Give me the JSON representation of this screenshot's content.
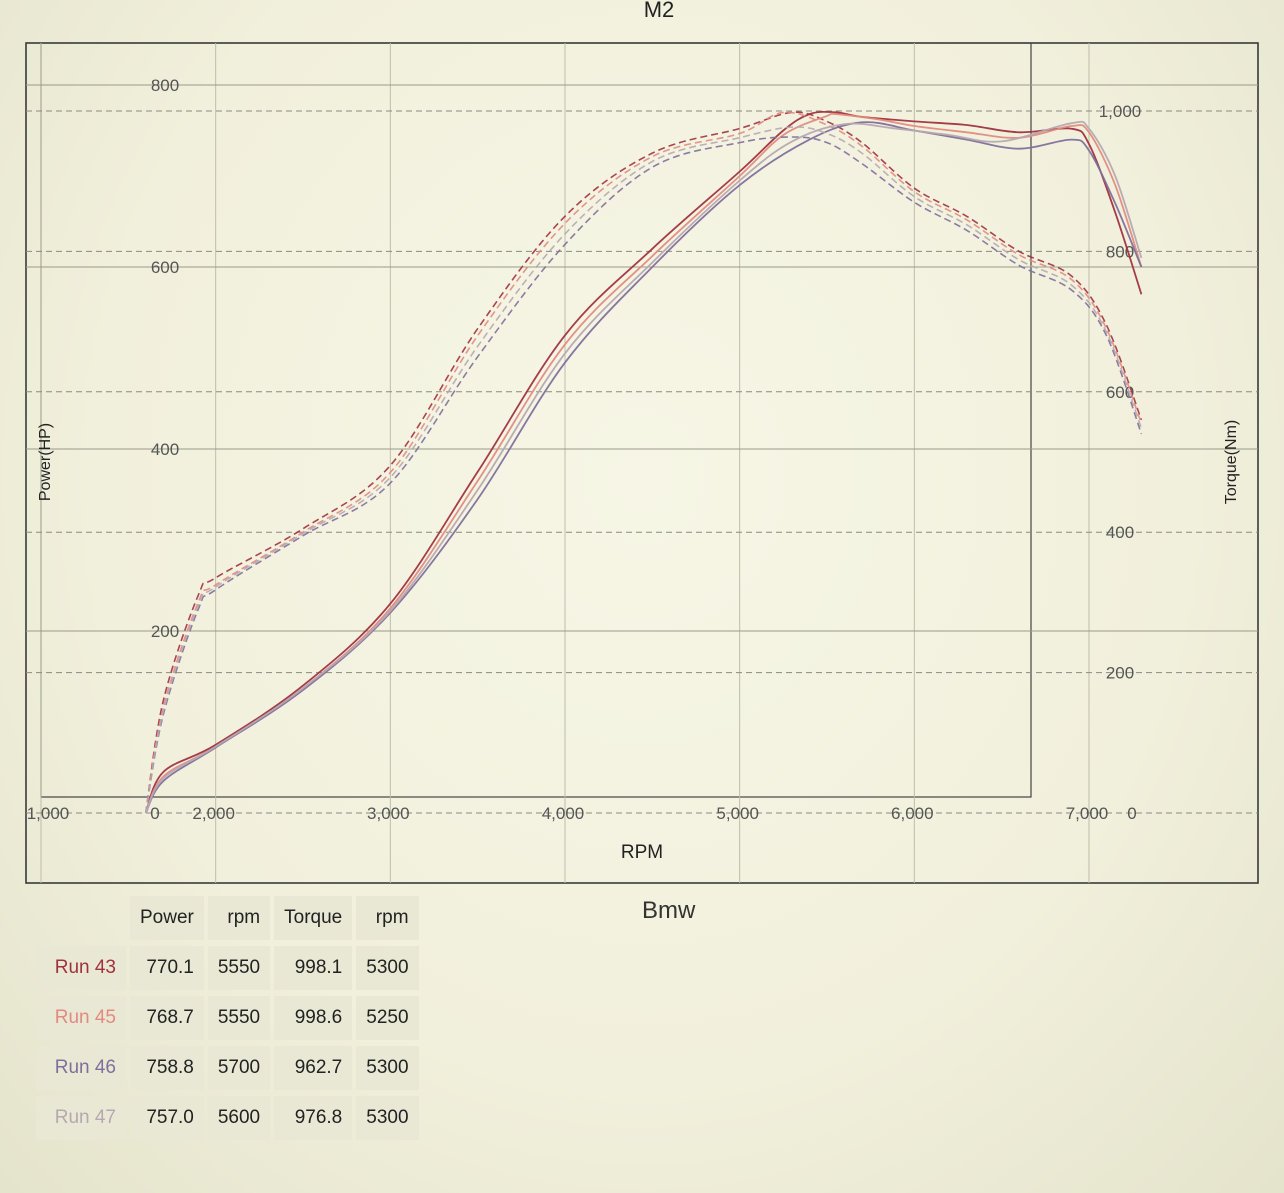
{
  "title": "M2",
  "subtitle": "Bmw",
  "colors": {
    "run43": "#a0323f",
    "run45": "#e28a80",
    "run46": "#7f6f9c",
    "run47": "#b6a8b0"
  },
  "chart_data": {
    "type": "line",
    "title": "M2",
    "xlabel": "RPM",
    "ylabel_left": "Power(HP)",
    "ylabel_right": "Torque(Nm)",
    "x_ticks": [
      "2,000",
      "3,000",
      "4,000",
      "5,000",
      "6,000",
      "7,000"
    ],
    "left_ticks": [
      "0",
      "200",
      "400",
      "600",
      "800"
    ],
    "right_ticks": [
      "0",
      "200",
      "400",
      "600",
      "800",
      "1,000"
    ],
    "left_axis_edge_label": "1,000",
    "xlim": [
      1000,
      7000
    ],
    "ylim_power": [
      0,
      800
    ],
    "ylim_torque": [
      0,
      1000
    ],
    "grid": true,
    "series": [
      {
        "name": "Run 43",
        "color_key": "run43",
        "power": [
          [
            1600,
            0
          ],
          [
            1700,
            45
          ],
          [
            2000,
            75
          ],
          [
            2500,
            140
          ],
          [
            3000,
            230
          ],
          [
            3500,
            375
          ],
          [
            4000,
            525
          ],
          [
            4500,
            620
          ],
          [
            5000,
            705
          ],
          [
            5250,
            750
          ],
          [
            5400,
            768
          ],
          [
            5550,
            770
          ],
          [
            5700,
            765
          ],
          [
            6000,
            760
          ],
          [
            6300,
            756
          ],
          [
            6600,
            748
          ],
          [
            6900,
            752
          ],
          [
            7000,
            735
          ],
          [
            7150,
            660
          ],
          [
            7300,
            570
          ]
        ],
        "torque": [
          [
            1600,
            0
          ],
          [
            1700,
            160
          ],
          [
            1900,
            310
          ],
          [
            2000,
            335
          ],
          [
            2500,
            405
          ],
          [
            3000,
            495
          ],
          [
            3500,
            690
          ],
          [
            4000,
            850
          ],
          [
            4500,
            940
          ],
          [
            5000,
            975
          ],
          [
            5300,
            998
          ],
          [
            5500,
            985
          ],
          [
            5700,
            955
          ],
          [
            6000,
            890
          ],
          [
            6300,
            850
          ],
          [
            6600,
            800
          ],
          [
            6900,
            765
          ],
          [
            7100,
            695
          ],
          [
            7300,
            560
          ]
        ]
      },
      {
        "name": "Run 45",
        "color_key": "run45",
        "power": [
          [
            1600,
            0
          ],
          [
            1700,
            40
          ],
          [
            2000,
            73
          ],
          [
            2500,
            137
          ],
          [
            3000,
            225
          ],
          [
            3500,
            365
          ],
          [
            4000,
            515
          ],
          [
            4500,
            612
          ],
          [
            5000,
            700
          ],
          [
            5250,
            745
          ],
          [
            5500,
            766
          ],
          [
            5550,
            768
          ],
          [
            5800,
            762
          ],
          [
            6000,
            755
          ],
          [
            6300,
            748
          ],
          [
            6600,
            742
          ],
          [
            6900,
            755
          ],
          [
            7000,
            748
          ],
          [
            7150,
            690
          ],
          [
            7300,
            600
          ]
        ],
        "torque": [
          [
            1600,
            0
          ],
          [
            1700,
            150
          ],
          [
            1900,
            300
          ],
          [
            2000,
            325
          ],
          [
            2500,
            400
          ],
          [
            3000,
            485
          ],
          [
            3500,
            680
          ],
          [
            4000,
            840
          ],
          [
            4500,
            935
          ],
          [
            5000,
            968
          ],
          [
            5250,
            998
          ],
          [
            5500,
            980
          ],
          [
            5700,
            950
          ],
          [
            6000,
            885
          ],
          [
            6300,
            845
          ],
          [
            6600,
            795
          ],
          [
            6900,
            760
          ],
          [
            7100,
            690
          ],
          [
            7300,
            555
          ]
        ]
      },
      {
        "name": "Run 46",
        "color_key": "run46",
        "power": [
          [
            1600,
            0
          ],
          [
            1700,
            35
          ],
          [
            2000,
            72
          ],
          [
            2500,
            135
          ],
          [
            3000,
            220
          ],
          [
            3500,
            345
          ],
          [
            4000,
            495
          ],
          [
            4500,
            600
          ],
          [
            5000,
            690
          ],
          [
            5400,
            740
          ],
          [
            5700,
            759
          ],
          [
            6000,
            750
          ],
          [
            6300,
            740
          ],
          [
            6600,
            730
          ],
          [
            6900,
            740
          ],
          [
            7000,
            728
          ],
          [
            7150,
            670
          ],
          [
            7300,
            600
          ]
        ],
        "torque": [
          [
            1600,
            0
          ],
          [
            1700,
            140
          ],
          [
            1900,
            290
          ],
          [
            2000,
            318
          ],
          [
            2500,
            395
          ],
          [
            3000,
            470
          ],
          [
            3500,
            650
          ],
          [
            4000,
            810
          ],
          [
            4500,
            920
          ],
          [
            5000,
            955
          ],
          [
            5300,
            963
          ],
          [
            5500,
            955
          ],
          [
            5700,
            925
          ],
          [
            6000,
            870
          ],
          [
            6300,
            830
          ],
          [
            6600,
            780
          ],
          [
            6900,
            745
          ],
          [
            7100,
            680
          ],
          [
            7300,
            540
          ]
        ]
      },
      {
        "name": "Run 47",
        "color_key": "run47",
        "power": [
          [
            1600,
            0
          ],
          [
            1700,
            38
          ],
          [
            2000,
            73
          ],
          [
            2500,
            137
          ],
          [
            3000,
            222
          ],
          [
            3500,
            355
          ],
          [
            4000,
            505
          ],
          [
            4500,
            605
          ],
          [
            5000,
            695
          ],
          [
            5300,
            738
          ],
          [
            5600,
            757
          ],
          [
            5900,
            752
          ],
          [
            6200,
            745
          ],
          [
            6500,
            738
          ],
          [
            6900,
            758
          ],
          [
            7000,
            752
          ],
          [
            7150,
            700
          ],
          [
            7300,
            610
          ]
        ],
        "torque": [
          [
            1600,
            0
          ],
          [
            1700,
            145
          ],
          [
            1900,
            295
          ],
          [
            2000,
            322
          ],
          [
            2500,
            398
          ],
          [
            3000,
            478
          ],
          [
            3500,
            665
          ],
          [
            4000,
            825
          ],
          [
            4500,
            928
          ],
          [
            5000,
            962
          ],
          [
            5300,
            977
          ],
          [
            5500,
            968
          ],
          [
            5700,
            940
          ],
          [
            6000,
            878
          ],
          [
            6300,
            838
          ],
          [
            6600,
            788
          ],
          [
            6900,
            752
          ],
          [
            7100,
            685
          ],
          [
            7300,
            548
          ]
        ]
      }
    ]
  },
  "results_table": {
    "headers": [
      "Power",
      "rpm",
      "Torque",
      "rpm"
    ],
    "rows": [
      {
        "run": "Run 43",
        "color_key": "run43",
        "power": "770.1",
        "power_rpm": "5550",
        "torque": "998.1",
        "torque_rpm": "5300"
      },
      {
        "run": "Run 45",
        "color_key": "run45",
        "power": "768.7",
        "power_rpm": "5550",
        "torque": "998.6",
        "torque_rpm": "5250"
      },
      {
        "run": "Run 46",
        "color_key": "run46",
        "power": "758.8",
        "power_rpm": "5700",
        "torque": "962.7",
        "torque_rpm": "5300"
      },
      {
        "run": "Run 47",
        "color_key": "run47",
        "power": "757.0",
        "power_rpm": "5600",
        "torque": "976.8",
        "torque_rpm": "5300"
      }
    ]
  }
}
